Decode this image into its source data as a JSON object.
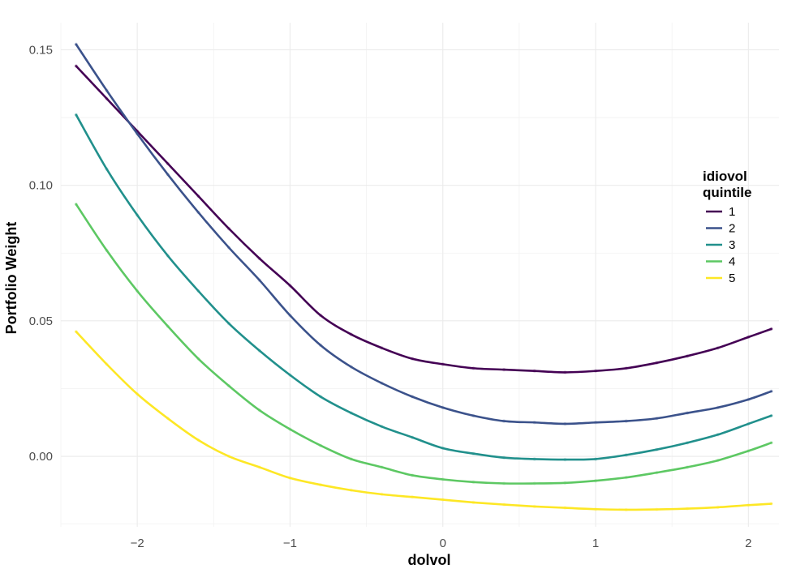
{
  "chart_data": {
    "type": "line",
    "xlabel": "dolvol",
    "ylabel": "Portfolio Weight",
    "xlim": [
      -2.5,
      2.2
    ],
    "ylim": [
      -0.026,
      0.16
    ],
    "x_ticks": [
      -2,
      -1,
      0,
      1,
      2
    ],
    "x_tick_labels": [
      "−2",
      "−1",
      "0",
      "1",
      "2"
    ],
    "y_ticks": [
      0.0,
      0.05,
      0.1,
      0.15
    ],
    "y_tick_labels": [
      "0.00",
      "0.05",
      "0.10",
      "0.15"
    ],
    "grid": true,
    "legend": {
      "title_lines": [
        "idiovol",
        "quintile"
      ],
      "placement": "right"
    },
    "colors": [
      "#440154",
      "#3b528b",
      "#21908c",
      "#5dc863",
      "#fde725"
    ],
    "series": [
      {
        "name": "1",
        "color": "#440154",
        "x": [
          -2.4,
          -2.2,
          -2.0,
          -1.8,
          -1.6,
          -1.4,
          -1.2,
          -1.0,
          -0.8,
          -0.6,
          -0.4,
          -0.2,
          0.0,
          0.2,
          0.4,
          0.6,
          0.8,
          1.0,
          1.2,
          1.4,
          1.6,
          1.8,
          2.0,
          2.15
        ],
        "y": [
          0.144,
          0.132,
          0.12,
          0.108,
          0.096,
          0.084,
          0.073,
          0.063,
          0.052,
          0.045,
          0.04,
          0.036,
          0.034,
          0.0325,
          0.032,
          0.0315,
          0.031,
          0.0315,
          0.0325,
          0.0345,
          0.037,
          0.04,
          0.044,
          0.047
        ]
      },
      {
        "name": "2",
        "color": "#3b528b",
        "x": [
          -2.4,
          -2.2,
          -2.0,
          -1.8,
          -1.6,
          -1.4,
          -1.2,
          -1.0,
          -0.8,
          -0.6,
          -0.4,
          -0.2,
          0.0,
          0.2,
          0.4,
          0.6,
          0.8,
          1.0,
          1.2,
          1.4,
          1.6,
          1.8,
          2.0,
          2.15
        ],
        "y": [
          0.152,
          0.135,
          0.119,
          0.104,
          0.09,
          0.077,
          0.065,
          0.052,
          0.041,
          0.033,
          0.027,
          0.022,
          0.018,
          0.015,
          0.013,
          0.0125,
          0.012,
          0.0125,
          0.013,
          0.014,
          0.016,
          0.018,
          0.021,
          0.024
        ]
      },
      {
        "name": "3",
        "color": "#21908c",
        "x": [
          -2.4,
          -2.2,
          -2.0,
          -1.8,
          -1.6,
          -1.4,
          -1.2,
          -1.0,
          -0.8,
          -0.6,
          -0.4,
          -0.2,
          0.0,
          0.2,
          0.4,
          0.6,
          0.8,
          1.0,
          1.2,
          1.4,
          1.6,
          1.8,
          2.0,
          2.15
        ],
        "y": [
          0.126,
          0.106,
          0.089,
          0.074,
          0.061,
          0.049,
          0.039,
          0.03,
          0.022,
          0.016,
          0.011,
          0.007,
          0.003,
          0.001,
          -0.0005,
          -0.001,
          -0.0012,
          -0.001,
          0.0005,
          0.0025,
          0.005,
          0.008,
          0.012,
          0.015
        ]
      },
      {
        "name": "4",
        "color": "#5dc863",
        "x": [
          -2.4,
          -2.2,
          -2.0,
          -1.8,
          -1.6,
          -1.4,
          -1.2,
          -1.0,
          -0.8,
          -0.6,
          -0.4,
          -0.2,
          0.0,
          0.2,
          0.4,
          0.6,
          0.8,
          1.0,
          1.2,
          1.4,
          1.6,
          1.8,
          2.0,
          2.15
        ],
        "y": [
          0.093,
          0.076,
          0.061,
          0.048,
          0.036,
          0.026,
          0.017,
          0.01,
          0.004,
          -0.001,
          -0.004,
          -0.007,
          -0.0085,
          -0.0095,
          -0.01,
          -0.01,
          -0.0098,
          -0.009,
          -0.0078,
          -0.006,
          -0.004,
          -0.0015,
          0.002,
          0.005
        ]
      },
      {
        "name": "5",
        "color": "#fde725",
        "x": [
          -2.4,
          -2.2,
          -2.0,
          -1.8,
          -1.6,
          -1.4,
          -1.2,
          -1.0,
          -0.8,
          -0.6,
          -0.4,
          -0.2,
          0.0,
          0.2,
          0.4,
          0.6,
          0.8,
          1.0,
          1.2,
          1.4,
          1.6,
          1.8,
          2.0,
          2.15
        ],
        "y": [
          0.046,
          0.034,
          0.023,
          0.014,
          0.006,
          0.0,
          -0.004,
          -0.008,
          -0.0105,
          -0.0125,
          -0.014,
          -0.015,
          -0.016,
          -0.017,
          -0.0178,
          -0.0185,
          -0.019,
          -0.0195,
          -0.0197,
          -0.0196,
          -0.0193,
          -0.0188,
          -0.018,
          -0.0175
        ]
      }
    ]
  }
}
